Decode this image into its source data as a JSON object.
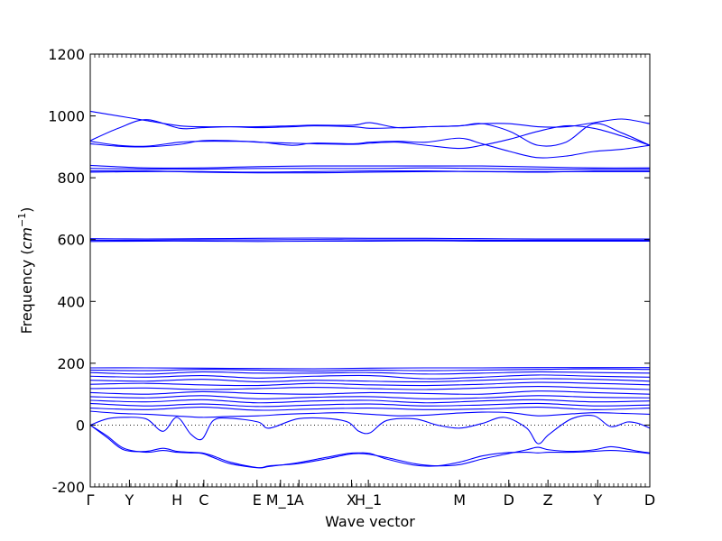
{
  "chart_data": {
    "type": "line",
    "title": "",
    "xlabel": "Wave vector",
    "ylabel": "Frequency ($cm^{-1}$)",
    "ylabel_parts": {
      "main": "Frequency (",
      "var": "cm",
      "exp": "−1",
      "close": ")"
    },
    "ylim": [
      -200,
      1200
    ],
    "yticks": [
      -200,
      0,
      200,
      400,
      600,
      800,
      1000,
      1200
    ],
    "grid": false,
    "legend": "none",
    "line_color": "#0000ff",
    "zero_line": {
      "y": 0,
      "style": "dotted"
    },
    "xlim": [
      0,
      1
    ],
    "high_symmetry_points": [
      {
        "label": "Γ",
        "x": 0.0
      },
      {
        "label": "Y",
        "x": 0.07
      },
      {
        "label": "H",
        "x": 0.155
      },
      {
        "label": "C",
        "x": 0.203
      },
      {
        "label": "E",
        "x": 0.298
      },
      {
        "label": "M_1",
        "x": 0.34
      },
      {
        "label": "A",
        "x": 0.373
      },
      {
        "label": "X",
        "x": 0.467
      },
      {
        "label": "H_1",
        "x": 0.497
      },
      {
        "label": "M",
        "x": 0.66
      },
      {
        "label": "D",
        "x": 0.748
      },
      {
        "label": "Z",
        "x": 0.818
      },
      {
        "label": "Y",
        "x": 0.907
      },
      {
        "label": "D",
        "x": 1.0
      }
    ],
    "series": [
      {
        "x": [
          0,
          0.05,
          0.1,
          0.16,
          0.2,
          0.25,
          0.3,
          0.36,
          0.4,
          0.47,
          0.5,
          0.55,
          0.6,
          0.66,
          0.7,
          0.75,
          0.8,
          0.85,
          0.9,
          0.95,
          1.0
        ],
        "y": [
          1015,
          1000,
          985,
          968,
          965,
          965,
          965,
          968,
          970,
          970,
          978,
          962,
          965,
          968,
          975,
          975,
          965,
          965,
          978,
          990,
          975
        ]
      },
      {
        "x": [
          0,
          0.05,
          0.1,
          0.16,
          0.2,
          0.25,
          0.3,
          0.36,
          0.4,
          0.47,
          0.5,
          0.55,
          0.6,
          0.66,
          0.7,
          0.75,
          0.8,
          0.85,
          0.9,
          0.95,
          1.0
        ],
        "y": [
          920,
          960,
          988,
          960,
          962,
          965,
          962,
          965,
          968,
          965,
          960,
          962,
          965,
          968,
          975,
          950,
          905,
          915,
          975,
          945,
          905
        ]
      },
      {
        "x": [
          0,
          0.05,
          0.1,
          0.16,
          0.2,
          0.25,
          0.3,
          0.36,
          0.4,
          0.47,
          0.5,
          0.55,
          0.6,
          0.66,
          0.7,
          0.75,
          0.8,
          0.85,
          0.9,
          0.95,
          1.0
        ],
        "y": [
          918,
          905,
          902,
          915,
          918,
          918,
          916,
          905,
          912,
          910,
          915,
          918,
          915,
          928,
          910,
          885,
          865,
          870,
          885,
          892,
          905
        ]
      },
      {
        "x": [
          0,
          0.05,
          0.1,
          0.16,
          0.2,
          0.25,
          0.3,
          0.36,
          0.4,
          0.47,
          0.5,
          0.55,
          0.6,
          0.66,
          0.7,
          0.75,
          0.8,
          0.85,
          0.9,
          0.95,
          1.0
        ],
        "y": [
          910,
          902,
          900,
          908,
          920,
          920,
          915,
          912,
          910,
          908,
          912,
          915,
          905,
          895,
          905,
          925,
          950,
          968,
          960,
          935,
          905
        ]
      },
      {
        "x": [
          0,
          0.1,
          0.2,
          0.3,
          0.4,
          0.5,
          0.6,
          0.7,
          0.8,
          0.9,
          1.0
        ],
        "y": [
          840,
          832,
          832,
          836,
          838,
          838,
          838,
          838,
          835,
          832,
          832
        ]
      },
      {
        "x": [
          0,
          0.1,
          0.2,
          0.3,
          0.4,
          0.5,
          0.6,
          0.7,
          0.8,
          0.9,
          1.0
        ],
        "y": [
          830,
          828,
          828,
          830,
          830,
          830,
          832,
          830,
          828,
          828,
          828
        ]
      },
      {
        "x": [
          0,
          0.1,
          0.2,
          0.3,
          0.4,
          0.5,
          0.6,
          0.7,
          0.8,
          0.9,
          1.0
        ],
        "y": [
          822,
          822,
          818,
          816,
          816,
          818,
          820,
          820,
          818,
          822,
          822
        ]
      },
      {
        "x": [
          0,
          0.1,
          0.2,
          0.3,
          0.4,
          0.5,
          0.6,
          0.7,
          0.8,
          0.9,
          1.0
        ],
        "y": [
          818,
          820,
          820,
          818,
          820,
          822,
          822,
          820,
          820,
          820,
          820
        ]
      },
      {
        "x": [
          0,
          0.1,
          0.2,
          0.3,
          0.4,
          0.5,
          0.6,
          0.7,
          0.8,
          0.9,
          1.0
        ],
        "y": [
          603,
          602,
          603,
          604,
          605,
          604,
          604,
          603,
          602,
          602,
          602
        ]
      },
      {
        "x": [
          0,
          0.1,
          0.2,
          0.3,
          0.4,
          0.5,
          0.6,
          0.7,
          0.8,
          0.9,
          1.0
        ],
        "y": [
          598,
          598,
          599,
          599,
          600,
          599,
          599,
          598,
          598,
          598,
          598
        ]
      },
      {
        "x": [
          0,
          0.1,
          0.2,
          0.3,
          0.4,
          0.5,
          0.6,
          0.7,
          0.8,
          0.9,
          1.0
        ],
        "y": [
          594,
          595,
          595,
          594,
          595,
          595,
          596,
          595,
          595,
          595,
          595
        ]
      },
      {
        "x": [
          0,
          0.1,
          0.2,
          0.3,
          0.4,
          0.5,
          0.6,
          0.7,
          0.8,
          0.9,
          1.0
        ],
        "y": [
          185,
          185,
          184,
          183,
          182,
          184,
          185,
          185,
          186,
          186,
          186
        ]
      },
      {
        "x": [
          0,
          0.1,
          0.2,
          0.3,
          0.4,
          0.5,
          0.6,
          0.7,
          0.8,
          0.9,
          1.0
        ],
        "y": [
          178,
          176,
          180,
          178,
          175,
          178,
          176,
          178,
          180,
          182,
          180
        ]
      },
      {
        "x": [
          0,
          0.1,
          0.2,
          0.3,
          0.4,
          0.5,
          0.6,
          0.7,
          0.8,
          0.9,
          1.0
        ],
        "y": [
          170,
          165,
          172,
          168,
          168,
          170,
          165,
          168,
          172,
          170,
          168
        ]
      },
      {
        "x": [
          0,
          0.1,
          0.2,
          0.3,
          0.4,
          0.5,
          0.6,
          0.7,
          0.8,
          0.9,
          1.0
        ],
        "y": [
          158,
          155,
          160,
          152,
          158,
          160,
          150,
          155,
          162,
          158,
          155
        ]
      },
      {
        "x": [
          0,
          0.1,
          0.2,
          0.3,
          0.4,
          0.5,
          0.6,
          0.7,
          0.8,
          0.9,
          1.0
        ],
        "y": [
          145,
          142,
          148,
          140,
          145,
          142,
          140,
          145,
          150,
          148,
          142
        ]
      },
      {
        "x": [
          0,
          0.1,
          0.2,
          0.3,
          0.4,
          0.5,
          0.6,
          0.7,
          0.8,
          0.9,
          1.0
        ],
        "y": [
          132,
          135,
          130,
          128,
          135,
          130,
          128,
          132,
          138,
          135,
          130
        ]
      },
      {
        "x": [
          0,
          0.1,
          0.2,
          0.3,
          0.4,
          0.5,
          0.6,
          0.7,
          0.8,
          0.9,
          1.0
        ],
        "y": [
          118,
          120,
          115,
          118,
          122,
          118,
          115,
          120,
          125,
          120,
          115
        ]
      },
      {
        "x": [
          0,
          0.1,
          0.2,
          0.3,
          0.4,
          0.5,
          0.6,
          0.7,
          0.8,
          0.9,
          1.0
        ],
        "y": [
          105,
          100,
          108,
          102,
          100,
          105,
          102,
          100,
          110,
          105,
          100
        ]
      },
      {
        "x": [
          0,
          0.1,
          0.2,
          0.3,
          0.4,
          0.5,
          0.6,
          0.7,
          0.8,
          0.9,
          1.0
        ],
        "y": [
          92,
          88,
          95,
          85,
          90,
          92,
          85,
          88,
          95,
          90,
          88
        ]
      },
      {
        "x": [
          0,
          0.1,
          0.2,
          0.3,
          0.4,
          0.5,
          0.6,
          0.7,
          0.8,
          0.9,
          1.0
        ],
        "y": [
          80,
          75,
          82,
          72,
          78,
          80,
          72,
          78,
          82,
          75,
          78
        ]
      },
      {
        "x": [
          0,
          0.1,
          0.2,
          0.3,
          0.4,
          0.5,
          0.6,
          0.7,
          0.8,
          0.9,
          1.0
        ],
        "y": [
          70,
          62,
          68,
          60,
          65,
          68,
          62,
          65,
          70,
          62,
          65
        ]
      },
      {
        "x": [
          0,
          0.1,
          0.2,
          0.3,
          0.4,
          0.5,
          0.6,
          0.7,
          0.8,
          0.9,
          1.0
        ],
        "y": [
          55,
          50,
          58,
          48,
          52,
          55,
          50,
          52,
          58,
          50,
          55
        ]
      },
      {
        "x": [
          0,
          0.05,
          0.1,
          0.15,
          0.2,
          0.25,
          0.3,
          0.35,
          0.4,
          0.45,
          0.5,
          0.55,
          0.6,
          0.65,
          0.7,
          0.75,
          0.8,
          0.85,
          0.9,
          0.95,
          1.0
        ],
        "y": [
          45,
          38,
          35,
          30,
          25,
          28,
          30,
          35,
          38,
          40,
          35,
          30,
          32,
          38,
          42,
          40,
          30,
          35,
          40,
          38,
          35
        ]
      },
      {
        "x": [
          0,
          0.03,
          0.06,
          0.1,
          0.13,
          0.155,
          0.18,
          0.2,
          0.22,
          0.25,
          0.3,
          0.32,
          0.37,
          0.42,
          0.46,
          0.48,
          0.5,
          0.53,
          0.58,
          0.62,
          0.66,
          0.7,
          0.74,
          0.78,
          0.8,
          0.82,
          0.86,
          0.9,
          0.93,
          0.96,
          0.98,
          1.0
        ],
        "y": [
          0,
          20,
          25,
          20,
          -20,
          25,
          -30,
          -45,
          15,
          22,
          10,
          -10,
          20,
          22,
          10,
          -20,
          -25,
          15,
          20,
          0,
          -10,
          5,
          25,
          -10,
          -60,
          -30,
          20,
          30,
          -5,
          10,
          5,
          -10
        ]
      },
      {
        "x": [
          0,
          0.03,
          0.06,
          0.1,
          0.13,
          0.155,
          0.18,
          0.2,
          0.22,
          0.25,
          0.3,
          0.32,
          0.37,
          0.42,
          0.46,
          0.48,
          0.5,
          0.53,
          0.58,
          0.62,
          0.66,
          0.7,
          0.74,
          0.78,
          0.8,
          0.82,
          0.86,
          0.9,
          0.93,
          0.96,
          0.98,
          1.0
        ],
        "y": [
          0,
          -40,
          -80,
          -85,
          -75,
          -85,
          -88,
          -90,
          -100,
          -120,
          -138,
          -132,
          -125,
          -110,
          -95,
          -92,
          -95,
          -105,
          -125,
          -132,
          -128,
          -110,
          -95,
          -80,
          -72,
          -80,
          -85,
          -80,
          -70,
          -78,
          -85,
          -90
        ]
      },
      {
        "x": [
          0,
          0.03,
          0.06,
          0.1,
          0.13,
          0.155,
          0.18,
          0.2,
          0.22,
          0.25,
          0.3,
          0.32,
          0.37,
          0.42,
          0.46,
          0.48,
          0.5,
          0.53,
          0.58,
          0.62,
          0.66,
          0.7,
          0.74,
          0.78,
          0.8,
          0.82,
          0.86,
          0.9,
          0.93,
          0.96,
          0.98,
          1.0
        ],
        "y": [
          0,
          -35,
          -75,
          -88,
          -82,
          -88,
          -90,
          -92,
          -105,
          -125,
          -138,
          -134,
          -122,
          -105,
          -92,
          -90,
          -92,
          -110,
          -130,
          -132,
          -120,
          -100,
          -90,
          -88,
          -90,
          -88,
          -88,
          -85,
          -82,
          -85,
          -88,
          -92
        ]
      }
    ]
  }
}
